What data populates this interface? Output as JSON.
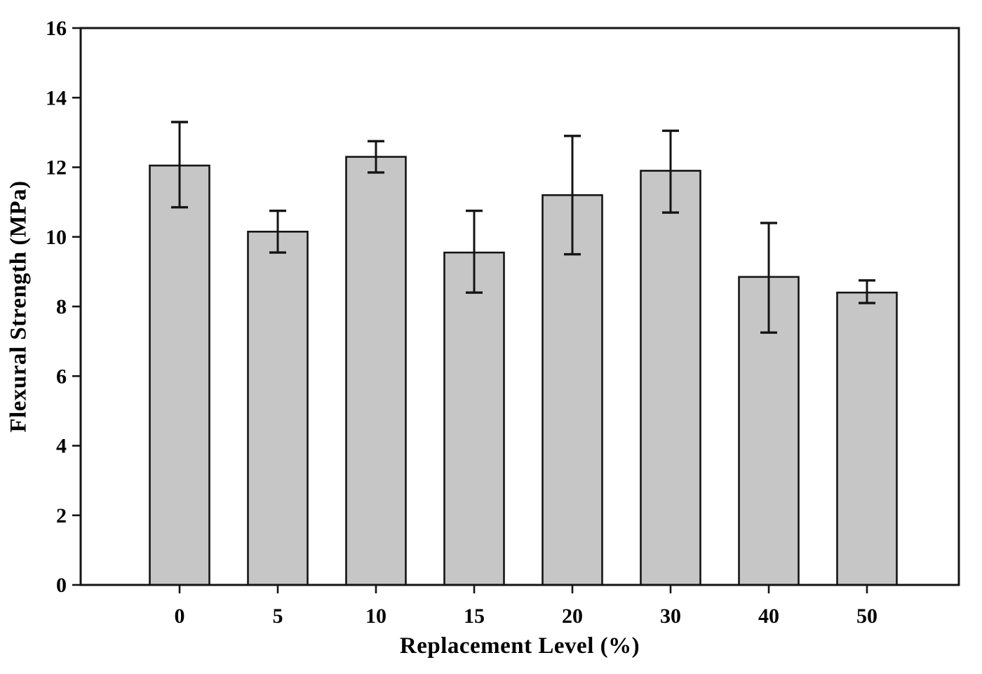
{
  "chart_data": {
    "type": "bar",
    "title": "",
    "xlabel": "Replacement Level (%)",
    "ylabel": "Flexural Strength (MPa)",
    "categories": [
      "0",
      "5",
      "10",
      "15",
      "20",
      "30",
      "40",
      "50"
    ],
    "values": [
      12.05,
      10.15,
      12.3,
      9.55,
      11.2,
      11.9,
      8.85,
      8.4
    ],
    "error_low": [
      10.85,
      9.55,
      11.85,
      8.4,
      9.5,
      10.7,
      7.25,
      8.1
    ],
    "error_high": [
      13.3,
      10.75,
      12.75,
      10.75,
      12.9,
      13.05,
      10.4,
      8.75
    ],
    "ylim": [
      0,
      16
    ],
    "yticks": [
      0,
      2,
      4,
      6,
      8,
      10,
      12,
      14,
      16
    ],
    "grid": false,
    "legend": null,
    "bar_fill": "#c6c6c6",
    "bar_edge": "#141414",
    "axis_color": "#141414",
    "background": "#ffffff"
  }
}
